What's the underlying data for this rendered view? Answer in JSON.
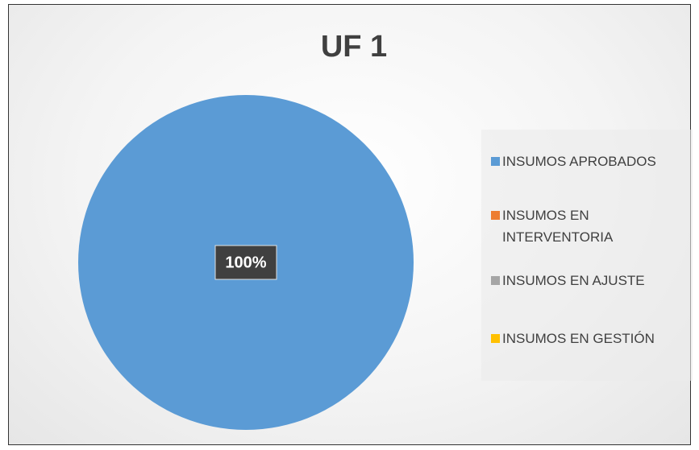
{
  "chart_data": {
    "type": "pie",
    "title": "UF 1",
    "categories": [
      "INSUMOS APROBADOS",
      "INSUMOS EN INTERVENTORIA",
      "INSUMOS EN AJUSTE",
      "INSUMOS EN GESTIÓN"
    ],
    "values": [
      100,
      0,
      0,
      0
    ],
    "value_labels": [
      "100%",
      null,
      null,
      null
    ],
    "colors": [
      "#5b9bd5",
      "#ed7d31",
      "#a5a5a5",
      "#ffc000"
    ],
    "legend": "right"
  }
}
